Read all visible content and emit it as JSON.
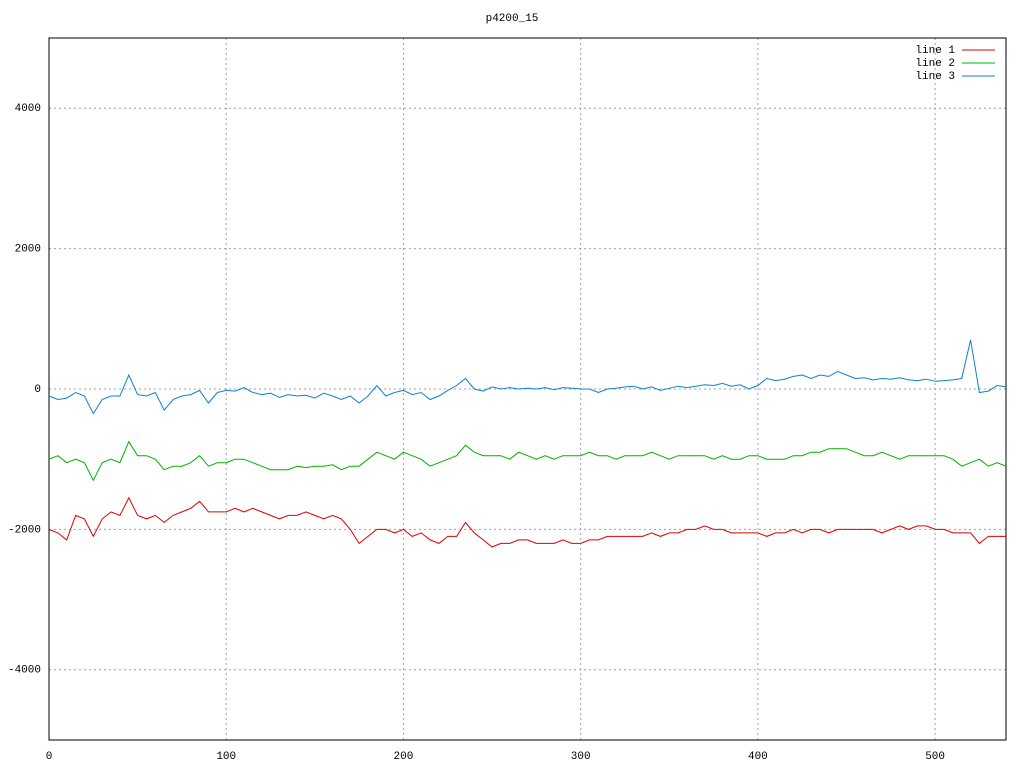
{
  "chart_data": {
    "type": "line",
    "title": "p4200_15",
    "x": [
      0,
      5,
      10,
      15,
      20,
      25,
      30,
      35,
      40,
      45,
      50,
      55,
      60,
      65,
      70,
      75,
      80,
      85,
      90,
      95,
      100,
      105,
      110,
      115,
      120,
      125,
      130,
      135,
      140,
      145,
      150,
      155,
      160,
      165,
      170,
      175,
      180,
      185,
      190,
      195,
      200,
      205,
      210,
      215,
      220,
      225,
      230,
      235,
      240,
      245,
      250,
      255,
      260,
      265,
      270,
      275,
      280,
      285,
      290,
      295,
      300,
      305,
      310,
      315,
      320,
      325,
      330,
      335,
      340,
      345,
      350,
      355,
      360,
      365,
      370,
      375,
      380,
      385,
      390,
      395,
      400,
      405,
      410,
      415,
      420,
      425,
      430,
      435,
      440,
      445,
      450,
      455,
      460,
      465,
      470,
      475,
      480,
      485,
      490,
      495,
      500,
      505,
      510,
      515,
      520,
      525,
      530,
      535,
      540
    ],
    "series": [
      {
        "name": "line 1",
        "color": "#e00000",
        "values": [
          -2000,
          -2050,
          -2150,
          -1800,
          -1850,
          -2100,
          -1850,
          -1750,
          -1800,
          -1550,
          -1800,
          -1850,
          -1800,
          -1900,
          -1800,
          -1750,
          -1700,
          -1600,
          -1750,
          -1750,
          -1750,
          -1700,
          -1750,
          -1700,
          -1750,
          -1800,
          -1850,
          -1800,
          -1800,
          -1750,
          -1800,
          -1850,
          -1800,
          -1850,
          -2000,
          -2200,
          -2100,
          -2000,
          -2000,
          -2050,
          -2000,
          -2100,
          -2050,
          -2150,
          -2200,
          -2100,
          -2100,
          -1900,
          -2050,
          -2150,
          -2250,
          -2200,
          -2200,
          -2150,
          -2150,
          -2200,
          -2200,
          -2200,
          -2150,
          -2200,
          -2200,
          -2150,
          -2150,
          -2100,
          -2100,
          -2100,
          -2100,
          -2100,
          -2050,
          -2100,
          -2050,
          -2050,
          -2000,
          -2000,
          -1950,
          -2000,
          -2000,
          -2050,
          -2050,
          -2050,
          -2050,
          -2100,
          -2050,
          -2050,
          -2000,
          -2050,
          -2000,
          -2000,
          -2050,
          -2000,
          -2000,
          -2000,
          -2000,
          -2000,
          -2050,
          -2000,
          -1950,
          -2000,
          -1950,
          -1950,
          -2000,
          -2000,
          -2050,
          -2050,
          -2050,
          -2200,
          -2100,
          -2100,
          -2100
        ]
      },
      {
        "name": "line 2",
        "color": "#00b000",
        "values": [
          -1000,
          -950,
          -1050,
          -1000,
          -1050,
          -1300,
          -1050,
          -1000,
          -1050,
          -750,
          -950,
          -950,
          -1000,
          -1150,
          -1100,
          -1100,
          -1050,
          -950,
          -1100,
          -1050,
          -1050,
          -1000,
          -1000,
          -1050,
          -1100,
          -1150,
          -1150,
          -1150,
          -1100,
          -1120,
          -1100,
          -1100,
          -1080,
          -1150,
          -1100,
          -1100,
          -1000,
          -900,
          -950,
          -1000,
          -900,
          -950,
          -1000,
          -1100,
          -1050,
          -1000,
          -950,
          -800,
          -900,
          -950,
          -950,
          -950,
          -1000,
          -900,
          -950,
          -1000,
          -950,
          -1000,
          -950,
          -950,
          -950,
          -900,
          -950,
          -950,
          -1000,
          -950,
          -950,
          -950,
          -900,
          -950,
          -1000,
          -950,
          -950,
          -950,
          -950,
          -1000,
          -950,
          -1000,
          -1000,
          -950,
          -950,
          -1000,
          -1000,
          -1000,
          -950,
          -950,
          -900,
          -900,
          -850,
          -850,
          -850,
          -900,
          -950,
          -950,
          -900,
          -950,
          -1000,
          -950,
          -950,
          -950,
          -950,
          -950,
          -1000,
          -1100,
          -1050,
          -1000,
          -1100,
          -1050,
          -1100
        ]
      },
      {
        "name": "line 3",
        "color": "#1080d0",
        "values": [
          -100,
          -150,
          -130,
          -50,
          -100,
          -350,
          -150,
          -100,
          -100,
          200,
          -80,
          -100,
          -50,
          -300,
          -150,
          -100,
          -80,
          -20,
          -200,
          -50,
          -20,
          -30,
          20,
          -50,
          -80,
          -60,
          -120,
          -80,
          -100,
          -90,
          -130,
          -60,
          -100,
          -150,
          -100,
          -200,
          -100,
          50,
          -100,
          -50,
          -20,
          -80,
          -50,
          -150,
          -100,
          -20,
          50,
          150,
          0,
          -30,
          30,
          0,
          20,
          0,
          10,
          0,
          20,
          -10,
          20,
          10,
          0,
          0,
          -50,
          0,
          10,
          30,
          40,
          0,
          30,
          -20,
          10,
          40,
          20,
          40,
          60,
          50,
          80,
          40,
          60,
          0,
          50,
          150,
          120,
          140,
          180,
          200,
          150,
          200,
          180,
          250,
          200,
          150,
          160,
          130,
          150,
          140,
          160,
          130,
          120,
          140,
          110,
          120,
          130,
          150,
          700,
          -50,
          -30,
          50,
          30
        ]
      }
    ],
    "xlim": [
      0,
      540
    ],
    "ylim": [
      -5000,
      5000
    ],
    "xticks": [
      0,
      100,
      200,
      300,
      400,
      500
    ],
    "yticks": [
      -4000,
      -2000,
      0,
      2000,
      4000
    ],
    "grid": true,
    "legend": "top-right"
  }
}
